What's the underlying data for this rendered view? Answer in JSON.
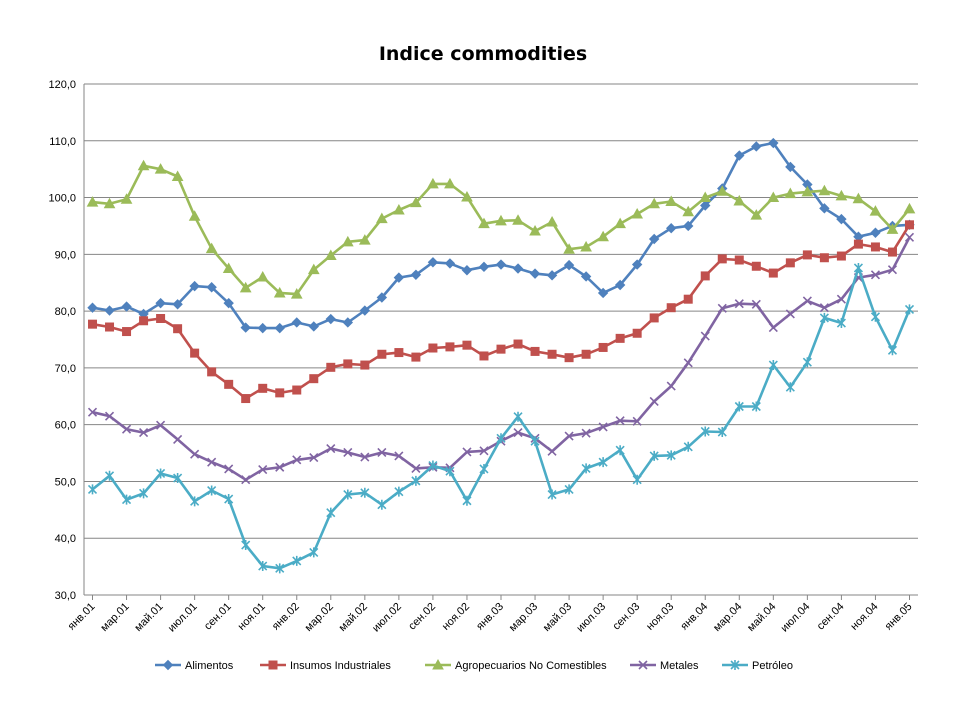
{
  "chart_data": {
    "type": "line",
    "title": "Indice commodities",
    "xlabel": "",
    "ylabel": "",
    "ylim": [
      30,
      120
    ],
    "yticks": [
      "30,0",
      "40,0",
      "50,0",
      "60,0",
      "70,0",
      "80,0",
      "90,0",
      "100,0",
      "110,0",
      "120,0"
    ],
    "grid": "horizontal",
    "legend_position": "bottom",
    "x_tick_labels": [
      "янв.01",
      "мар.01",
      "май.01",
      "июл.01",
      "сен.01",
      "ноя.01",
      "янв.02",
      "мар.02",
      "май.02",
      "июл.02",
      "сен.02",
      "ноя.02",
      "янв.03",
      "мар.03",
      "май.03",
      "июл.03",
      "сен.03",
      "ноя.03",
      "янв.04",
      "мар.04",
      "май.04",
      "июл.04",
      "сен.04",
      "ноя.04",
      "янв.05"
    ],
    "series": [
      {
        "name": "Alimentos",
        "color": "#4F81BD",
        "marker": "diamond",
        "values": [
          80.6,
          80.1,
          80.8,
          79.5,
          81.4,
          81.2,
          84.4,
          84.2,
          81.4,
          77.1,
          77.0,
          77.0,
          78.0,
          77.3,
          78.6,
          78.0,
          80.1,
          82.4,
          85.9,
          86.4,
          88.6,
          88.4,
          87.2,
          87.8,
          88.2,
          87.5,
          86.6,
          86.3,
          88.1,
          86.1,
          83.2,
          84.6,
          88.2,
          92.7,
          94.6,
          95.0,
          98.6,
          101.6,
          107.4,
          109.0,
          109.6,
          105.4,
          102.3,
          98.1,
          96.2,
          93.1,
          93.8,
          95.0,
          95.2
        ]
      },
      {
        "name": "Insumos Industriales",
        "color": "#C0504D",
        "marker": "square",
        "values": [
          77.7,
          77.2,
          76.4,
          78.3,
          78.7,
          76.9,
          72.6,
          69.3,
          67.1,
          64.6,
          66.4,
          65.6,
          66.1,
          68.1,
          70.1,
          70.7,
          70.5,
          72.4,
          72.7,
          71.9,
          73.5,
          73.7,
          74.0,
          72.1,
          73.3,
          74.2,
          72.9,
          72.4,
          71.8,
          72.4,
          73.6,
          75.2,
          76.1,
          78.8,
          80.6,
          82.1,
          86.2,
          89.2,
          89.0,
          87.9,
          86.7,
          88.5,
          89.9,
          89.4,
          89.7,
          91.8,
          91.3,
          90.4,
          95.2
        ]
      },
      {
        "name": "Agropecuarios No Comestibles",
        "color": "#9BBB59",
        "marker": "triangle",
        "values": [
          99.2,
          98.9,
          99.7,
          105.6,
          105.0,
          103.7,
          96.7,
          91.0,
          87.5,
          84.1,
          86.0,
          83.2,
          83.0,
          87.3,
          89.8,
          92.2,
          92.5,
          96.3,
          97.8,
          99.1,
          102.4,
          102.4,
          100.1,
          95.4,
          95.9,
          96.0,
          94.1,
          95.7,
          90.9,
          91.3,
          93.1,
          95.4,
          97.1,
          98.9,
          99.3,
          97.5,
          100.0,
          101.1,
          99.4,
          96.9,
          100.0,
          100.7,
          101.0,
          101.2,
          100.3,
          99.8,
          97.6,
          94.4,
          98.0
        ]
      },
      {
        "name": "Metales",
        "color": "#8064A2",
        "marker": "x",
        "values": [
          62.2,
          61.5,
          59.2,
          58.6,
          59.9,
          57.4,
          54.8,
          53.4,
          52.2,
          50.3,
          52.1,
          52.5,
          53.8,
          54.2,
          55.8,
          55.1,
          54.3,
          55.1,
          54.5,
          52.3,
          52.5,
          52.4,
          55.2,
          55.4,
          57.1,
          58.6,
          57.6,
          55.3,
          58.0,
          58.5,
          59.6,
          60.7,
          60.6,
          64.1,
          66.8,
          70.9,
          75.6,
          80.5,
          81.3,
          81.2,
          77.1,
          79.5,
          81.8,
          80.6,
          82.1,
          85.9,
          86.4,
          87.3,
          93.0
        ]
      },
      {
        "name": "Petróleo",
        "color": "#4BACC6",
        "marker": "star",
        "values": [
          48.6,
          51.0,
          46.8,
          47.9,
          51.4,
          50.6,
          46.5,
          48.4,
          46.9,
          38.8,
          35.1,
          34.7,
          36.0,
          37.5,
          44.5,
          47.7,
          48.0,
          45.9,
          48.2,
          50.1,
          52.8,
          51.8,
          46.6,
          52.2,
          57.6,
          61.4,
          57.1,
          47.7,
          48.6,
          52.3,
          53.4,
          55.5,
          50.3,
          54.5,
          54.6,
          56.1,
          58.8,
          58.7,
          63.2,
          63.2,
          70.5,
          66.6,
          71.0,
          78.8,
          77.9,
          87.6,
          79.0,
          73.1,
          80.3
        ]
      }
    ]
  }
}
